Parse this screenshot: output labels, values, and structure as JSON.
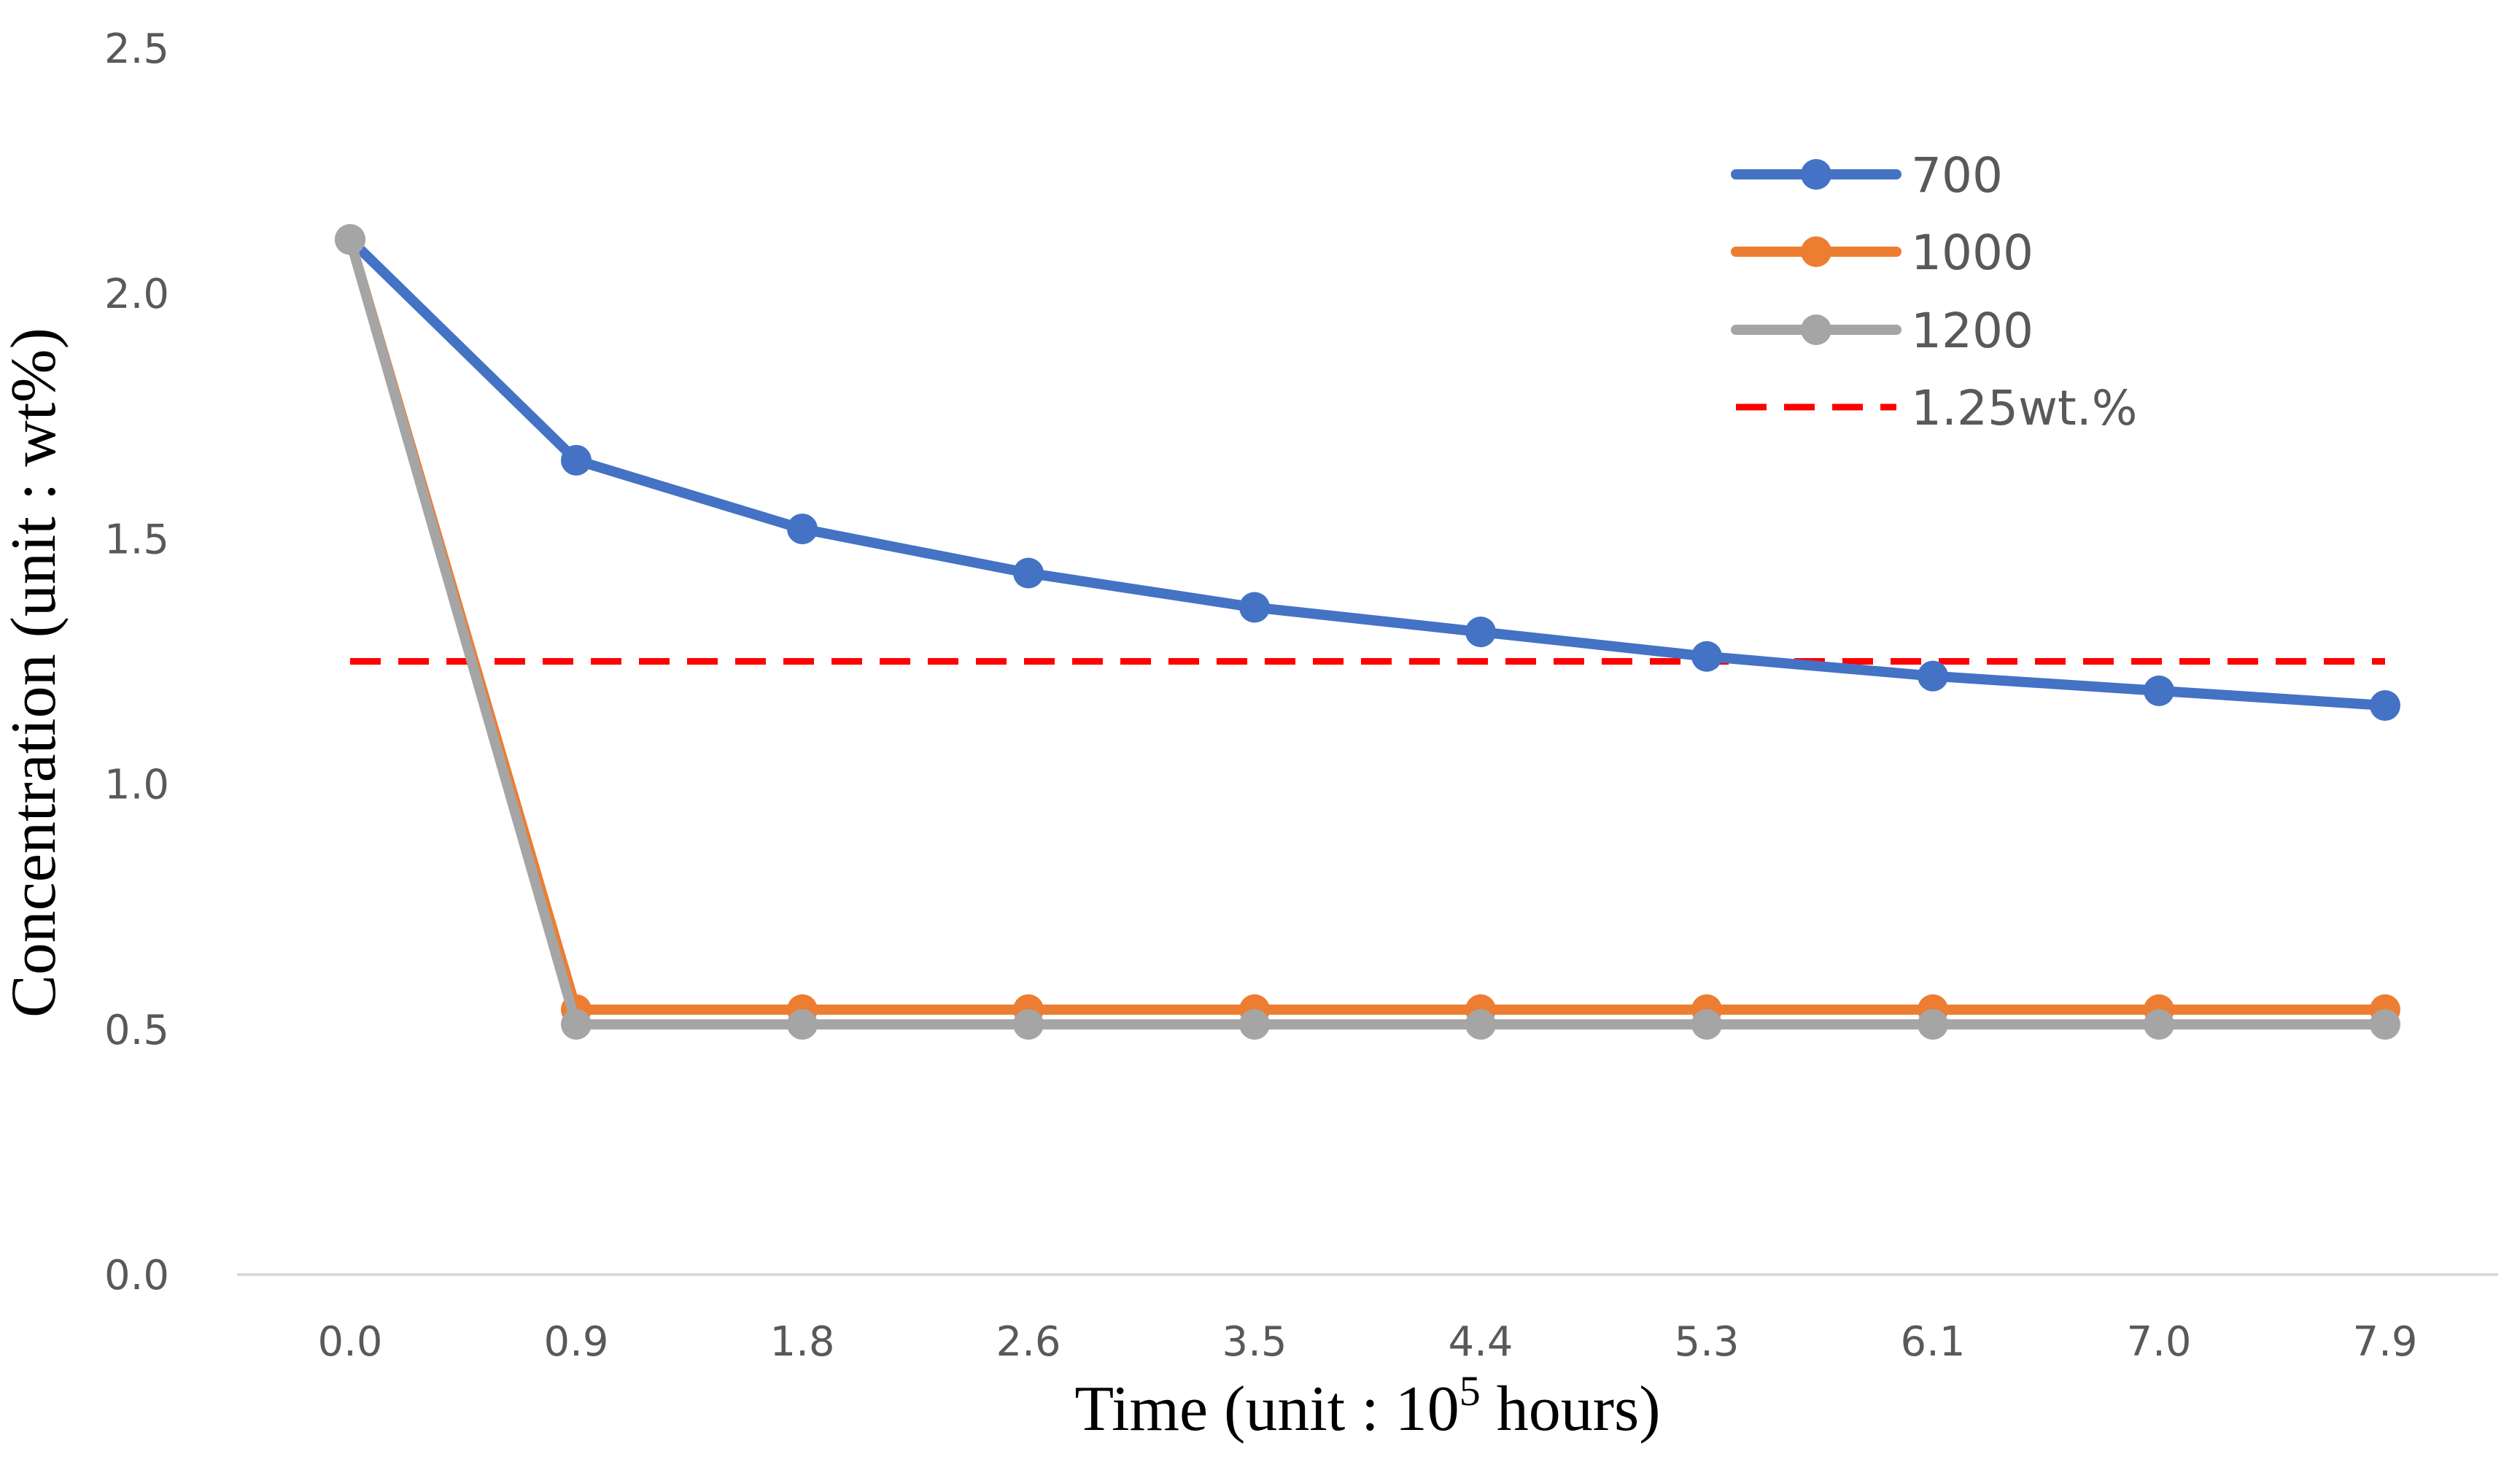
{
  "chart_data": {
    "type": "line",
    "title": "",
    "xlabel": "Time (unit : 10",
    "xlabel_sup": "5",
    "xlabel_tail": " hours)",
    "ylabel": "Concentration (unit : wt%)",
    "categories": [
      "0.0",
      "0.9",
      "1.8",
      "2.6",
      "3.5",
      "4.4",
      "5.3",
      "6.1",
      "7.0",
      "7.9"
    ],
    "ylim": [
      0,
      2.5
    ],
    "yticks": [
      "0.0",
      "0.5",
      "1.0",
      "1.5",
      "2.0",
      "2.5"
    ],
    "grid": false,
    "legend_position": "top-right",
    "series": [
      {
        "name": "700",
        "color": "#4472C4",
        "values": [
          2.11,
          1.66,
          1.52,
          1.43,
          1.36,
          1.31,
          1.26,
          1.22,
          1.19,
          1.16
        ]
      },
      {
        "name": "1000",
        "color": "#ED7D31",
        "values": [
          2.11,
          0.54,
          0.54,
          0.54,
          0.54,
          0.54,
          0.54,
          0.54,
          0.54,
          0.54
        ]
      },
      {
        "name": "1200",
        "color": "#A5A5A5",
        "values": [
          2.11,
          0.51,
          0.51,
          0.51,
          0.51,
          0.51,
          0.51,
          0.51,
          0.51,
          0.51
        ]
      }
    ],
    "reference_line": {
      "name": "1.25wt.%",
      "value": 1.25,
      "color": "#FF0000"
    }
  }
}
